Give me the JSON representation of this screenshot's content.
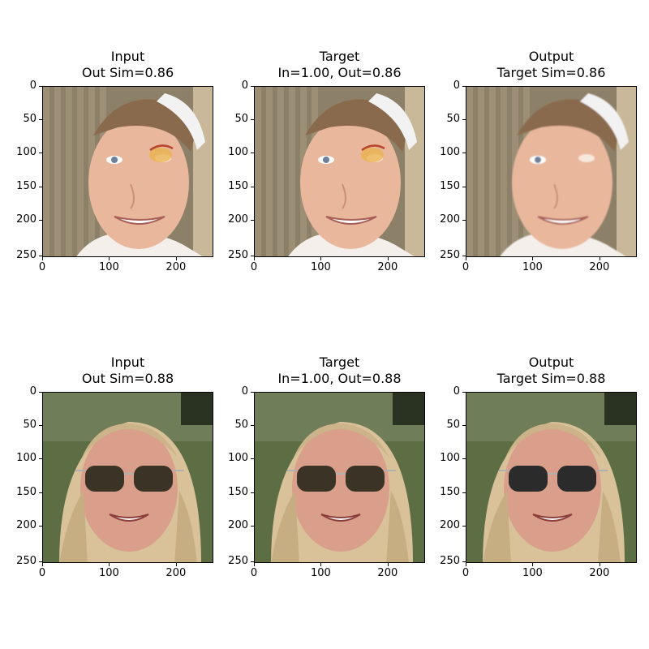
{
  "panels": [
    {
      "title_line1": "Input",
      "title_line2": "Out Sim=0.86"
    },
    {
      "title_line1": "Target",
      "title_line2": "In=1.00, Out=0.86"
    },
    {
      "title_line1": "Output",
      "title_line2": "Target Sim=0.86"
    },
    {
      "title_line1": "Input",
      "title_line2": "Out Sim=0.88"
    },
    {
      "title_line1": "Target",
      "title_line2": "In=1.00, Out=0.88"
    },
    {
      "title_line1": "Output",
      "title_line2": "Target Sim=0.88"
    }
  ],
  "axis": {
    "y_ticks": [
      "0",
      "50",
      "100",
      "150",
      "200",
      "250"
    ],
    "x_ticks": [
      "0",
      "100",
      "200"
    ]
  },
  "images": {
    "row1": "face-photo-woman-white-headband-bruised-eye",
    "row2": "face-photo-blonde-woman-sunglasses"
  }
}
